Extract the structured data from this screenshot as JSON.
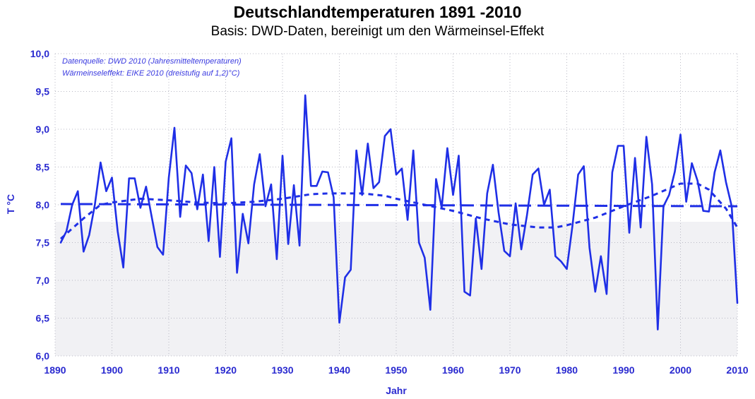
{
  "chart_data": {
    "type": "line",
    "title": "Deutschlandtemperaturen 1891 -2010",
    "subtitle": "Basis: DWD-Daten, bereinigt um den Wärmeinsel-Effekt",
    "xlabel": "Jahr",
    "ylabel": "T °C",
    "xlim": [
      1890,
      2010
    ],
    "ylim": [
      6.0,
      10.0
    ],
    "x_ticks": [
      1890,
      1900,
      1910,
      1920,
      1930,
      1940,
      1950,
      1960,
      1970,
      1980,
      1990,
      2000,
      2010
    ],
    "y_ticks": [
      "6,0",
      "6,5",
      "7,0",
      "7,5",
      "8,0",
      "8,5",
      "9,0",
      "9,5",
      "10,0"
    ],
    "grid": true,
    "annotations": [
      "Datenquelle: DWD 2010 (Jahresmitteltemperaturen)",
      "Wärmeinseleffekt: EIKE 2010 (dreistufig auf 1,2)°C)"
    ],
    "colors": {
      "series": "#1f2fe6",
      "axis_text": "#2a2ad0",
      "plot_bg_lower": "#f1f1f4"
    },
    "series": [
      {
        "style": "solid",
        "x": [
          1891,
          1892,
          1893,
          1894,
          1895,
          1896,
          1897,
          1898,
          1899,
          1900,
          1901,
          1902,
          1903,
          1904,
          1905,
          1906,
          1907,
          1908,
          1909,
          1910,
          1911,
          1912,
          1913,
          1914,
          1915,
          1916,
          1917,
          1918,
          1919,
          1920,
          1921,
          1922,
          1923,
          1924,
          1925,
          1926,
          1927,
          1928,
          1929,
          1930,
          1931,
          1932,
          1933,
          1934,
          1935,
          1936,
          1937,
          1938,
          1939,
          1940,
          1941,
          1942,
          1943,
          1944,
          1945,
          1946,
          1947,
          1948,
          1949,
          1950,
          1951,
          1952,
          1953,
          1954,
          1955,
          1956,
          1957,
          1958,
          1959,
          1960,
          1961,
          1962,
          1963,
          1964,
          1965,
          1966,
          1967,
          1968,
          1969,
          1970,
          1971,
          1972,
          1973,
          1974,
          1975,
          1976,
          1977,
          1978,
          1979,
          1980,
          1981,
          1982,
          1983,
          1984,
          1985,
          1986,
          1987,
          1988,
          1989,
          1990,
          1991,
          1992,
          1993,
          1994,
          1995,
          1996,
          1997,
          1998,
          1999,
          2000,
          2001,
          2002,
          2003,
          2004,
          2005,
          2006,
          2007,
          2008,
          2009,
          2010
        ],
        "values": [
          7.5,
          7.65,
          8.0,
          8.18,
          7.38,
          7.6,
          8.0,
          8.56,
          8.18,
          8.36,
          7.65,
          7.17,
          8.35,
          8.35,
          7.96,
          8.24,
          7.84,
          7.44,
          7.34,
          8.36,
          9.02,
          7.84,
          8.52,
          8.42,
          7.94,
          8.4,
          7.52,
          8.5,
          7.31,
          8.57,
          8.88,
          7.1,
          7.88,
          7.49,
          8.27,
          8.67,
          7.98,
          8.27,
          7.28,
          8.65,
          7.48,
          8.26,
          7.46,
          9.45,
          8.25,
          8.25,
          8.44,
          8.43,
          8.1,
          6.44,
          7.04,
          7.14,
          8.72,
          8.13,
          8.81,
          8.22,
          8.3,
          8.91,
          9.0,
          8.4,
          8.48,
          7.8,
          8.72,
          7.5,
          7.3,
          6.61,
          8.34,
          7.96,
          8.75,
          8.13,
          8.65,
          6.85,
          6.8,
          7.82,
          7.15,
          8.15,
          8.53,
          7.9,
          7.39,
          7.32,
          8.02,
          7.41,
          7.86,
          8.4,
          8.48,
          8.0,
          8.2,
          7.32,
          7.25,
          7.15,
          7.72,
          8.4,
          8.51,
          7.43,
          6.85,
          7.32,
          6.82,
          8.43,
          8.78,
          8.78,
          7.63,
          8.62,
          7.7,
          8.9,
          8.27,
          6.35,
          7.98,
          8.13,
          8.44,
          8.93,
          8.04,
          8.55,
          8.32,
          7.92,
          7.91,
          8.43,
          8.72,
          8.3,
          7.98,
          6.7
        ]
      },
      {
        "style": "dashed",
        "x": [
          1891,
          1895,
          1898,
          1900,
          1905,
          1910,
          1915,
          1920,
          1925,
          1930,
          1935,
          1938,
          1941,
          1944,
          1948,
          1950,
          1955,
          1960,
          1965,
          1970,
          1975,
          1978,
          1980,
          1985,
          1990,
          1995,
          2000,
          2003,
          2005,
          2008,
          2010
        ],
        "values": [
          7.55,
          7.82,
          8.0,
          8.03,
          8.08,
          8.06,
          8.03,
          8.02,
          8.04,
          8.08,
          8.14,
          8.15,
          8.15,
          8.15,
          8.12,
          8.08,
          8.0,
          7.92,
          7.82,
          7.74,
          7.7,
          7.7,
          7.73,
          7.83,
          7.98,
          8.12,
          8.28,
          8.28,
          8.2,
          7.95,
          7.7
        ]
      },
      {
        "style": "long-dashed",
        "x": [
          1891,
          2010
        ],
        "values": [
          8.01,
          7.98
        ]
      }
    ]
  }
}
